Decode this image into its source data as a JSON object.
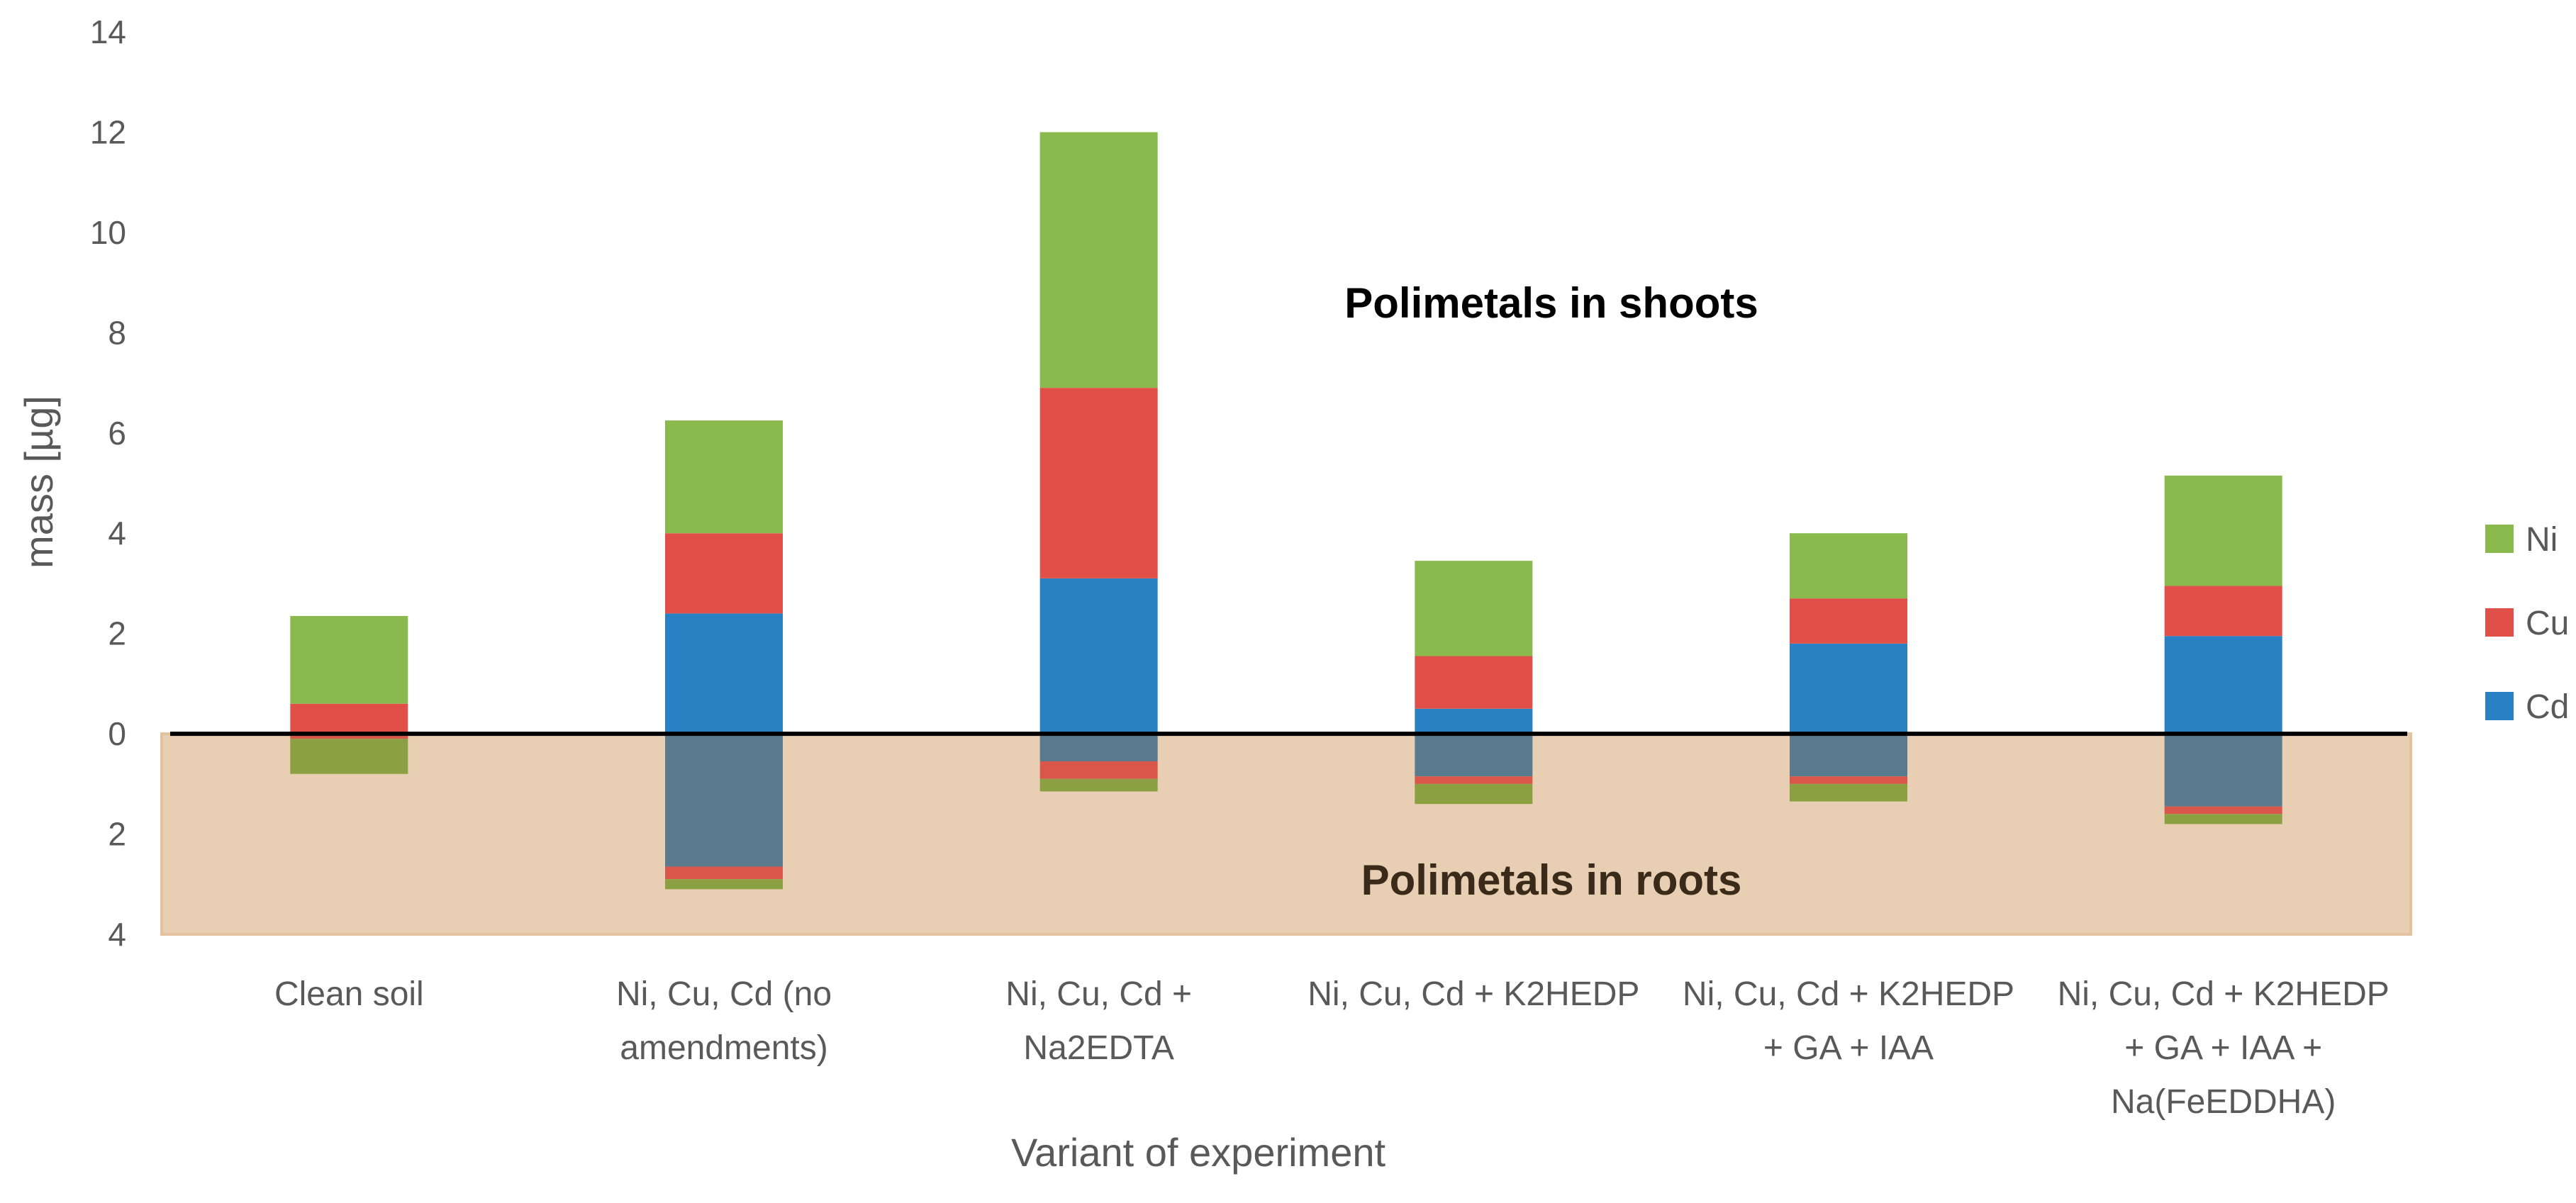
{
  "chart_data": {
    "type": "bar",
    "stacked": true,
    "title": "",
    "xlabel": "Variant of experiment",
    "ylabel": "mass [µg]",
    "ylim": [
      -4,
      14
    ],
    "yticks": [
      {
        "value": 14,
        "label": "14"
      },
      {
        "value": 12,
        "label": "12"
      },
      {
        "value": 10,
        "label": "10"
      },
      {
        "value": 8,
        "label": "8"
      },
      {
        "value": 6,
        "label": "6"
      },
      {
        "value": 4,
        "label": "4"
      },
      {
        "value": 2,
        "label": "2"
      },
      {
        "value": 0,
        "label": "0"
      },
      {
        "value": -2,
        "label": "2"
      },
      {
        "value": -4,
        "label": "4"
      }
    ],
    "categories": [
      [
        "Clean soil"
      ],
      [
        "Ni, Cu, Cd (no",
        "amendments)"
      ],
      [
        "Ni, Cu, Cd +",
        "Na2EDTA"
      ],
      [
        "Ni, Cu, Cd + K2HEDP"
      ],
      [
        "Ni, Cu, Cd + K2HEDP",
        "+ GA + IAA"
      ],
      [
        "Ni, Cu, Cd + K2HEDP",
        "+ GA + IAA +",
        "Na(FeEDDHA)"
      ]
    ],
    "shoots": [
      {
        "name": "Cd",
        "color": "#2980c2",
        "values": [
          0.0,
          2.4,
          3.1,
          0.5,
          1.8,
          1.95
        ]
      },
      {
        "name": "Cu",
        "color": "#e05048",
        "values": [
          0.6,
          1.6,
          3.8,
          1.05,
          0.9,
          1.0
        ]
      },
      {
        "name": "Ni",
        "color": "#8aba4e",
        "values": [
          1.75,
          2.25,
          5.1,
          1.9,
          1.3,
          2.2
        ]
      }
    ],
    "roots": [
      {
        "name": "Cd",
        "color": "#5a7a8e",
        "values": [
          0.0,
          2.65,
          0.55,
          0.85,
          0.85,
          1.45
        ]
      },
      {
        "name": "Cu",
        "color": "#d9574a",
        "values": [
          0.1,
          0.25,
          0.35,
          0.15,
          0.15,
          0.15
        ]
      },
      {
        "name": "Ni",
        "color": "#8ba043",
        "values": [
          0.7,
          0.2,
          0.25,
          0.4,
          0.35,
          0.2
        ]
      }
    ],
    "legend": [
      {
        "name": "Ni",
        "color": "#8aba4e"
      },
      {
        "name": "Cu",
        "color": "#e05048"
      },
      {
        "name": "Cd",
        "color": "#2980c2"
      }
    ],
    "legend_position": "right",
    "roots_region_color": "#e8cfb3",
    "annotations": {
      "shoots": "Polimetals in shoots",
      "roots": "Polimetals in roots"
    }
  }
}
